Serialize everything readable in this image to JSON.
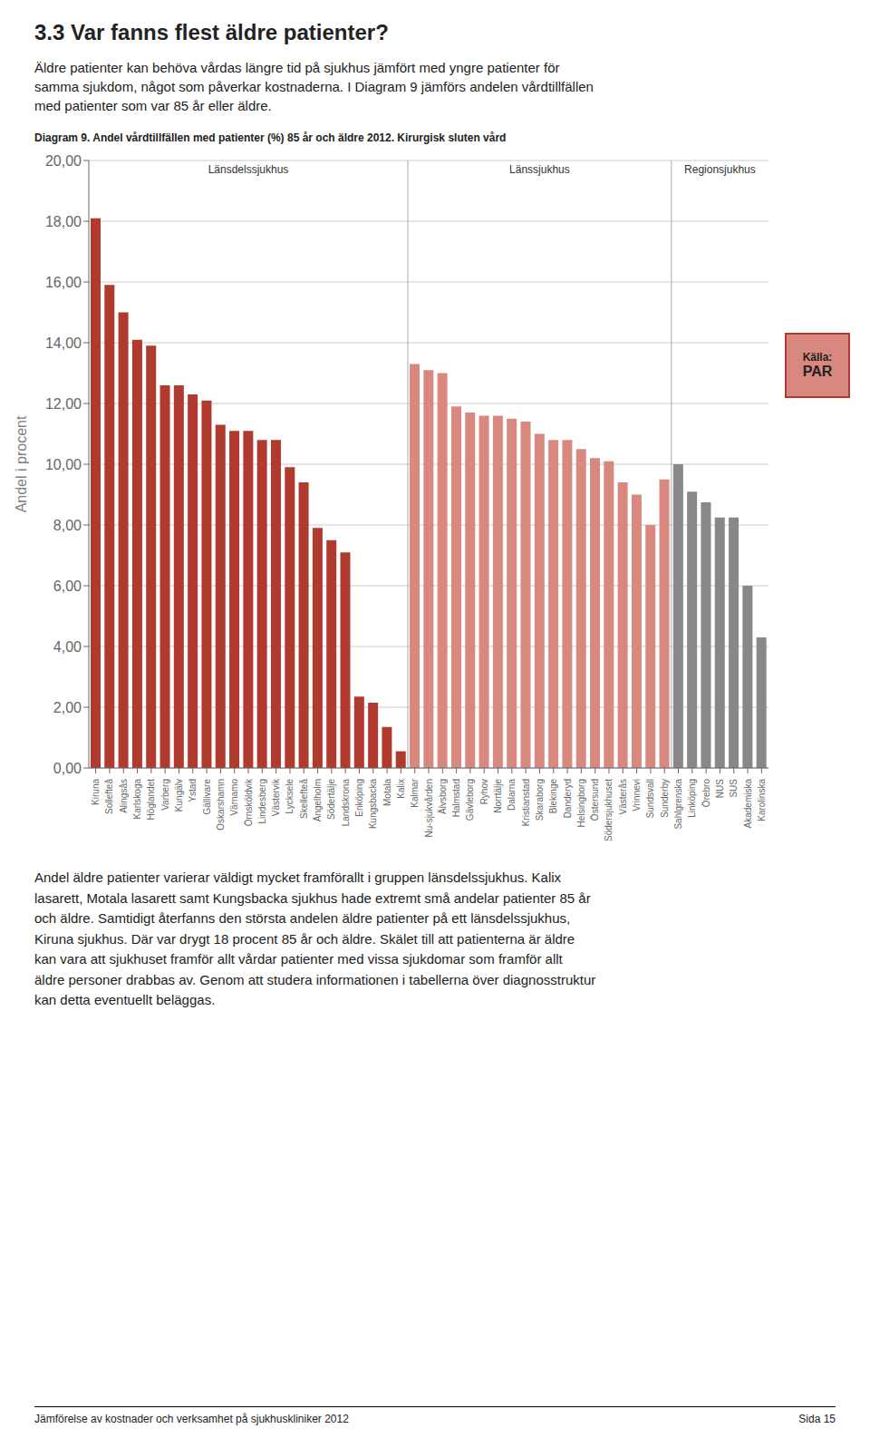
{
  "header": "3.3 Var fanns flest äldre patienter?",
  "body_text": "Äldre patienter kan behöva vårdas längre tid på sjukhus jämfört med yngre patienter för\nsamma sjukdom, något som påverkar kostnaderna. I Diagram 9 jämförs andelen vårdtillfällen\nmed patienter som var 85 år eller äldre.",
  "bottom_text": "Andel äldre patienter varierar väldigt mycket framförallt i gruppen länsdelssjukhus. Kalix\nlasarett, Motala lasarett samt Kungsbacka sjukhus hade extremt små andelar patienter 85 år\noch äldre. Samtidigt återfanns den största andelen äldre patienter på ett länsdelssjukhus,\nKiruna sjukhus. Där var drygt 18 procent 85 år och äldre. Skälet till att patienterna är äldre\nkan vara att sjukhuset framför allt vårdar patienter med vissa sjukdomar som framför allt\näldre personer drabbas av. Genom att studera informationen i tabellerna över diagnosstruktur\nkan detta eventuellt beläggas.",
  "footer_left": "Jämförelse av kostnader och verksamhet på sjukhuskliniker 2012",
  "footer_right": "Sida 15",
  "chart_data": {
    "type": "bar",
    "title": "Diagram 9. Andel vårdtillfällen med patienter (%) 85 år och äldre 2012. Kirurgisk sluten vård",
    "ylabel": "Andel i procent",
    "annotations": [
      "Källa:",
      "PAR"
    ],
    "categories": [
      "Kiruna",
      "Sollefteå",
      "Alingsås",
      "Karlskoga",
      "Höglandet",
      "Varberg",
      "Kungälv",
      "Ystad",
      "Gällivare",
      "Oskarshamn",
      "Värnamo",
      "Örnsköldvik",
      "Lindesberg",
      "Västervik",
      "Lycksele",
      "Skellefteå",
      "Ängelholm",
      "Södertälje",
      "Landskrona",
      "Enköping",
      "Kungsbacka",
      "Motala",
      "Kalix",
      "Kalmar",
      "Nu-sjukvården",
      "Älvsborg",
      "Halmstad",
      "Gävleborg",
      "Ryhov",
      "Norrtälje",
      "Dalarna",
      "Kristianstad",
      "Skaraborg",
      "Blekinge",
      "Danderyd",
      "Helsingborg",
      "Östersund",
      "Södersjukhuset",
      "Västerås",
      "Vrinnevi",
      "Sundsvall",
      "Sunderby",
      "Sahlgrenska",
      "Linköping",
      "Örebro",
      "NUS",
      "SUS",
      "Akademiska",
      "Karolinska"
    ],
    "series": [
      {
        "name": "Länsdelssjukhus",
        "color": "#b03a2e",
        "values": [
          18.1,
          15.9,
          15.0,
          14.1,
          13.9,
          12.6,
          12.6,
          12.3,
          12.1,
          11.3,
          11.1,
          11.1,
          10.8,
          10.8,
          9.9,
          9.4,
          7.9,
          7.5,
          7.1,
          2.35,
          2.15,
          1.35,
          0.55,
          null,
          null,
          null,
          null,
          null,
          null,
          null,
          null,
          null,
          null,
          null,
          null,
          null,
          null,
          null,
          null,
          null,
          null,
          null,
          null,
          null,
          null,
          null,
          null,
          null,
          null
        ]
      },
      {
        "name": "Länssjukhus",
        "color": "#d98880",
        "values": [
          null,
          null,
          null,
          null,
          null,
          null,
          null,
          null,
          null,
          null,
          null,
          null,
          null,
          null,
          null,
          null,
          null,
          null,
          null,
          null,
          null,
          null,
          null,
          13.3,
          13.1,
          13.0,
          11.9,
          11.7,
          11.6,
          11.6,
          11.5,
          11.4,
          11.0,
          10.8,
          10.8,
          10.5,
          10.2,
          10.1,
          9.4,
          9.0,
          8.0,
          9.5,
          null,
          null,
          null,
          null,
          null,
          null,
          null
        ]
      },
      {
        "name": "Regionsjukhus",
        "color": "#888888",
        "values": [
          null,
          null,
          null,
          null,
          null,
          null,
          null,
          null,
          null,
          null,
          null,
          null,
          null,
          null,
          null,
          null,
          null,
          null,
          null,
          null,
          null,
          null,
          null,
          null,
          null,
          null,
          null,
          null,
          null,
          null,
          null,
          null,
          null,
          null,
          null,
          null,
          null,
          null,
          null,
          null,
          null,
          null,
          10.0,
          9.1,
          8.75,
          8.25,
          8.25,
          6.0,
          4.3
        ]
      }
    ],
    "ylim": [
      0,
      20
    ],
    "yticks": [
      {
        "value": 0,
        "label": "0,00"
      },
      {
        "value": 2,
        "label": "2,00"
      },
      {
        "value": 4,
        "label": "4,00"
      },
      {
        "value": 6,
        "label": "6,00"
      },
      {
        "value": 8,
        "label": "8,00"
      },
      {
        "value": 10,
        "label": "10,00"
      },
      {
        "value": 12,
        "label": "12,00"
      },
      {
        "value": 14,
        "label": "14,00"
      },
      {
        "value": 16,
        "label": "16,00"
      },
      {
        "value": 18,
        "label": "18,00"
      },
      {
        "value": 20,
        "label": "20,00"
      }
    ],
    "grid": true
  }
}
